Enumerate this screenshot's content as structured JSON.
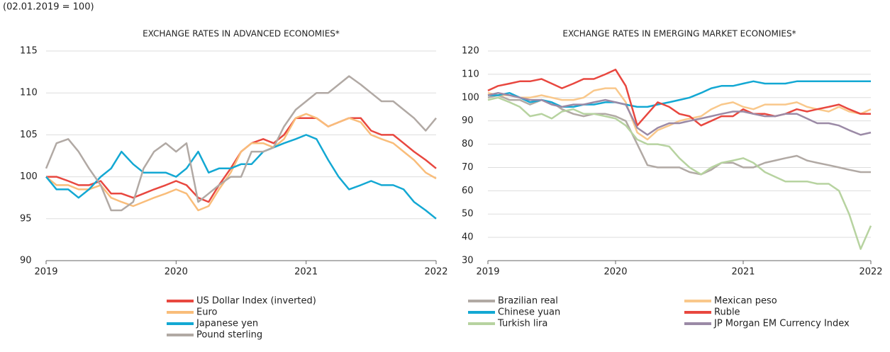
{
  "subtitle": "(02.01.2019 = 100)",
  "chart_data": [
    {
      "type": "line",
      "title": "EXCHANGE RATES IN ADVANCED ECONOMIES*",
      "x": [
        2019,
        2019.08,
        2019.17,
        2019.25,
        2019.33,
        2019.42,
        2019.5,
        2019.58,
        2019.67,
        2019.75,
        2019.83,
        2019.92,
        2020,
        2020.08,
        2020.17,
        2020.25,
        2020.33,
        2020.42,
        2020.5,
        2020.58,
        2020.67,
        2020.75,
        2020.83,
        2020.92,
        2021,
        2021.08,
        2021.17,
        2021.25,
        2021.33,
        2021.42,
        2021.5,
        2021.58,
        2021.67,
        2021.75,
        2021.83,
        2021.92,
        2022
      ],
      "xlim": [
        2019,
        2022
      ],
      "xticks": [
        2019,
        2020,
        2021,
        2022
      ],
      "ylim": [
        90,
        115
      ],
      "yticks": [
        90,
        95,
        100,
        105,
        110,
        115
      ],
      "grid": true,
      "series": [
        {
          "name": "US Dollar Index (inverted)",
          "color": "#e8473f",
          "values": [
            100,
            100,
            99.5,
            99,
            99,
            99.5,
            98,
            98,
            97.5,
            98,
            98.5,
            99,
            99.5,
            99,
            97.5,
            97,
            99,
            101,
            103,
            104,
            104.5,
            104,
            105,
            107,
            107,
            107,
            106,
            106.5,
            107,
            107,
            105.5,
            105,
            105,
            104,
            103,
            102,
            101
          ]
        },
        {
          "name": "Euro",
          "color": "#f9bd7a",
          "values": [
            100,
            99,
            99,
            98.5,
            98.5,
            99,
            97.5,
            97,
            96.5,
            97,
            97.5,
            98,
            98.5,
            98,
            96,
            96.5,
            98.5,
            100.5,
            103,
            104,
            104,
            103.5,
            104.5,
            107,
            107.5,
            107,
            106,
            106.5,
            107,
            106.5,
            105,
            104.5,
            104,
            103,
            102,
            100.5,
            99.8
          ]
        },
        {
          "name": "Japanese yen",
          "color": "#13a8d3",
          "values": [
            100,
            98.5,
            98.5,
            97.5,
            98.5,
            100,
            101,
            103,
            101.5,
            100.5,
            100.5,
            100.5,
            100,
            101,
            103,
            100.5,
            101,
            101,
            101.5,
            101.5,
            103,
            103.5,
            104,
            104.5,
            105,
            104.5,
            102,
            100,
            98.5,
            99,
            99.5,
            99,
            99,
            98.5,
            97,
            96,
            95
          ]
        },
        {
          "name": "Pound sterling",
          "color": "#b1a9a4",
          "values": [
            101,
            104,
            104.5,
            103,
            101,
            99,
            96,
            96,
            97,
            101,
            103,
            104,
            103,
            104,
            97,
            98,
            99,
            100,
            100,
            103,
            103,
            103.5,
            106,
            108,
            109,
            110,
            110,
            111,
            112,
            111,
            110,
            109,
            109,
            108,
            107,
            105.5,
            107
          ]
        }
      ]
    },
    {
      "type": "line",
      "title": "EXCHANGE RATES IN EMERGING MARKET ECONOMIES*",
      "x": [
        2019,
        2019.08,
        2019.17,
        2019.25,
        2019.33,
        2019.42,
        2019.5,
        2019.58,
        2019.67,
        2019.75,
        2019.83,
        2019.92,
        2020,
        2020.08,
        2020.17,
        2020.25,
        2020.33,
        2020.42,
        2020.5,
        2020.58,
        2020.67,
        2020.75,
        2020.83,
        2020.92,
        2021,
        2021.08,
        2021.17,
        2021.25,
        2021.33,
        2021.42,
        2021.5,
        2021.58,
        2021.67,
        2021.75,
        2021.83,
        2021.92,
        2022
      ],
      "xlim": [
        2019,
        2022
      ],
      "xticks": [
        2019,
        2020,
        2021,
        2022
      ],
      "ylim": [
        30,
        120
      ],
      "yticks": [
        30,
        40,
        50,
        60,
        70,
        80,
        90,
        100,
        110,
        120
      ],
      "grid": true,
      "series": [
        {
          "name": "Brazilian real",
          "color": "#b1a9a4",
          "values": [
            100,
            101,
            99,
            99,
            97,
            99,
            98,
            95,
            93,
            92,
            93,
            93,
            92,
            90,
            80,
            71,
            70,
            70,
            70,
            68,
            67,
            69,
            72,
            72,
            70,
            70,
            72,
            73,
            74,
            75,
            73,
            72,
            71,
            70,
            69,
            68,
            68
          ]
        },
        {
          "name": "Mexican peso",
          "color": "#f9c88b",
          "values": [
            102,
            101,
            101,
            100,
            100,
            101,
            100,
            99,
            99,
            100,
            103,
            104,
            104,
            98,
            85,
            82,
            86,
            88,
            90,
            91,
            92,
            95,
            97,
            98,
            96,
            95,
            97,
            97,
            97,
            98,
            96,
            95,
            94,
            96,
            94,
            93,
            95
          ]
        },
        {
          "name": "Chinese yuan",
          "color": "#13a8d3",
          "values": [
            101,
            101,
            102,
            100,
            98,
            99,
            98,
            96,
            96,
            97,
            97,
            98,
            98,
            97,
            96,
            96,
            97,
            98,
            99,
            100,
            102,
            104,
            105,
            105,
            106,
            107,
            106,
            106,
            106,
            107,
            107,
            107,
            107,
            107,
            107,
            107,
            107
          ]
        },
        {
          "name": "Ruble",
          "color": "#e8473f",
          "values": [
            103,
            105,
            106,
            107,
            107,
            108,
            106,
            104,
            106,
            108,
            108,
            110,
            112,
            105,
            88,
            93,
            98,
            96,
            93,
            92,
            88,
            90,
            92,
            92,
            95,
            93,
            93,
            92,
            93,
            95,
            94,
            95,
            96,
            97,
            95,
            93,
            93
          ]
        },
        {
          "name": "Turkish lira",
          "color": "#b7d3a0",
          "values": [
            99,
            100,
            98,
            96,
            92,
            93,
            91,
            94,
            95,
            93,
            93,
            92,
            91,
            88,
            82,
            80,
            80,
            79,
            74,
            70,
            67,
            70,
            72,
            73,
            74,
            72,
            68,
            66,
            64,
            64,
            64,
            63,
            63,
            60,
            50,
            35,
            45
          ]
        },
        {
          "name": "JP Morgan EM Currency Index",
          "color": "#9b8aa6",
          "values": [
            101,
            102,
            101,
            100,
            99,
            99,
            97,
            96,
            97,
            97,
            98,
            99,
            98,
            97,
            87,
            84,
            87,
            89,
            89,
            90,
            91,
            92,
            93,
            94,
            94,
            93,
            92,
            92,
            93,
            93,
            91,
            89,
            89,
            88,
            86,
            84,
            85
          ]
        }
      ]
    }
  ]
}
